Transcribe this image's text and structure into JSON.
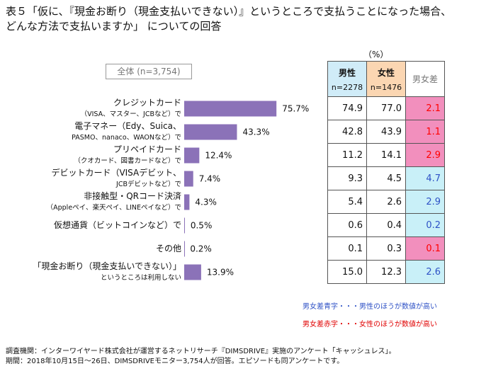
{
  "title_line1": "表５「仮に、『現金お断り（現金支払いできない）』というところで支払うことになった場合、",
  "title_line2": "どんな方法で支払いますか」 についての回答",
  "overall_label": "全体 (n=3,754)",
  "unit_label": "（%）",
  "header": {
    "male": "男性",
    "male_n": "n=2278",
    "female": "女性",
    "female_n": "n=1476",
    "diff": "男女差"
  },
  "colors": {
    "bar": "#8b72b8",
    "pink": "#f28fbd",
    "blue": "#c9f0f8",
    "male_head": "#d0ecf8",
    "female_head": "#fbd6b2"
  },
  "chart_data": {
    "type": "bar",
    "orientation": "horizontal",
    "title": "どんな方法で支払いますか",
    "xlim": [
      0,
      100
    ],
    "categories": [
      {
        "main": "クレジットカード",
        "sub": "（VISA、マスター、JCBなど）で"
      },
      {
        "main": "電子マネー（Edy、Suica、",
        "sub": "PASMO、nanaco、WAONなど）で"
      },
      {
        "main": "プリペイドカード",
        "sub": "（クオカード、図書カードなど）で"
      },
      {
        "main": "デビットカード（VISAデビット、",
        "sub": "JCBデビットなど）で"
      },
      {
        "main": "非接触型・QRコード決済",
        "sub": "（Appleペイ、楽天ペイ、LINEペイなど）で"
      },
      {
        "main": "仮想通貨（ビットコインなど）で",
        "sub": ""
      },
      {
        "main": "その他",
        "sub": ""
      },
      {
        "main": "「現金お断り（現金支払いできない）」",
        "sub": "というところは利用しない"
      }
    ],
    "values": [
      75.7,
      43.3,
      12.4,
      7.4,
      4.3,
      0.5,
      0.2,
      13.9
    ],
    "value_labels": [
      "75.7%",
      "43.3%",
      "12.4%",
      "7.4%",
      "4.3%",
      "0.5%",
      "0.2%",
      "13.9%"
    ]
  },
  "table_rows": [
    {
      "male": "74.9",
      "female": "77.0",
      "diff": "2.1",
      "color": "pink"
    },
    {
      "male": "42.8",
      "female": "43.9",
      "diff": "1.1",
      "color": "pink"
    },
    {
      "male": "11.2",
      "female": "14.1",
      "diff": "2.9",
      "color": "pink"
    },
    {
      "male": "9.3",
      "female": "4.5",
      "diff": "4.7",
      "color": "blue"
    },
    {
      "male": "5.4",
      "female": "2.6",
      "diff": "2.9",
      "color": "blue"
    },
    {
      "male": "0.6",
      "female": "0.4",
      "diff": "0.2",
      "color": "blue"
    },
    {
      "male": "0.1",
      "female": "0.3",
      "diff": "0.1",
      "color": "pink"
    },
    {
      "male": "15.0",
      "female": "12.3",
      "diff": "2.6",
      "color": "blue"
    }
  ],
  "note_blue": "男女差青字・・・男性のほうが数値が高い",
  "note_red": "男女差赤字・・・女性のほうが数値が高い",
  "footer_line1": "調査機関：インターワイヤード株式会社が運営するネットリサーチ『DIMSDRIVE』実施のアンケート「キャッシュレス」。",
  "footer_line2": "期間：2018年10月15日～26日、DIMSDRIVEモニター3,754人が回答。エピソードも同アンケートです。"
}
